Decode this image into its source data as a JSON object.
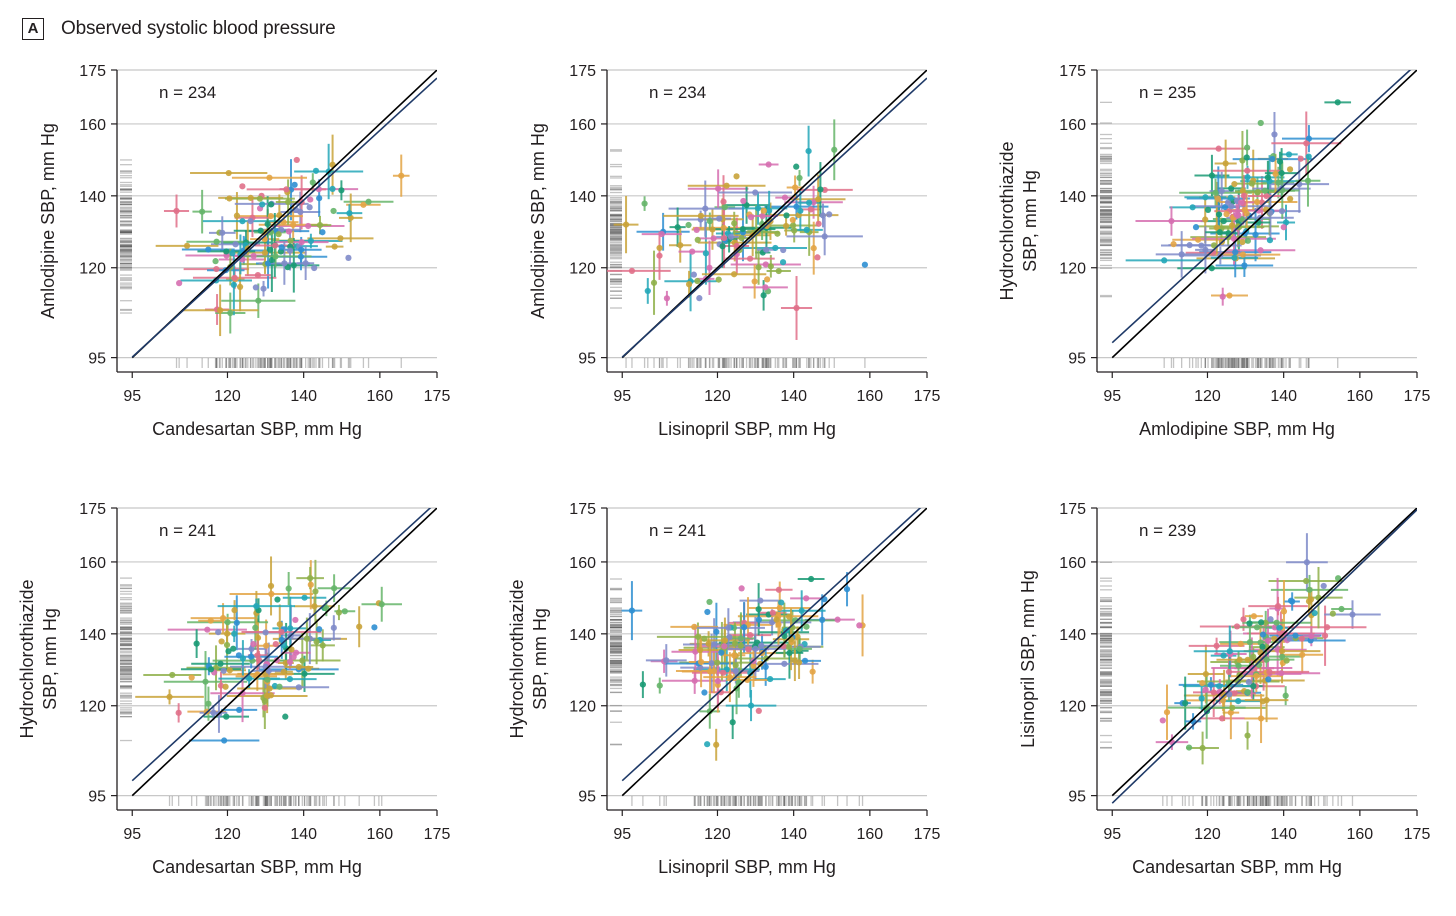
{
  "panel": {
    "letter": "A",
    "title": "Observed systolic blood pressure"
  },
  "colors": {
    "grid": "#c8c8c8",
    "axis": "#231f20",
    "identity_line": "#000000",
    "fit_line": "#1f3a68",
    "rug": "#555555",
    "points": [
      "#e0708a",
      "#e3a445",
      "#8fb04a",
      "#1a9a74",
      "#24a7b8",
      "#2f8fd1",
      "#7f8bc9",
      "#d66fb0",
      "#c9a33a",
      "#66b56a"
    ]
  },
  "chart_data": [
    {
      "type": "scatter",
      "n_label": "n = 234",
      "xlabel": "Candesartan SBP, mm Hg",
      "ylabel_lines": [
        "Amlodipine SBP, mm Hg"
      ],
      "xlim": [
        91,
        175
      ],
      "ylim": [
        91,
        175
      ],
      "ticks": [
        95,
        120,
        140,
        160,
        175
      ],
      "identity_line": true,
      "fit_line": {
        "intercept": 3,
        "slope": 0.97
      },
      "cloud": {
        "cx": 132,
        "cy": 130,
        "sx": 11,
        "sy": 9,
        "rho": 0.35,
        "seed": 11
      }
    },
    {
      "type": "scatter",
      "n_label": "n = 234",
      "xlabel": "Lisinopril SBP, mm Hg",
      "ylabel_lines": [
        "Amlodipine SBP, mm Hg"
      ],
      "xlim": [
        91,
        175
      ],
      "ylim": [
        91,
        175
      ],
      "ticks": [
        95,
        120,
        140,
        160,
        175
      ],
      "identity_line": true,
      "fit_line": {
        "intercept": 3,
        "slope": 0.97
      },
      "cloud": {
        "cx": 128,
        "cy": 129,
        "sx": 12,
        "sy": 9,
        "rho": 0.4,
        "seed": 23
      }
    },
    {
      "type": "scatter",
      "n_label": "n = 235",
      "xlabel": "Amlodipine SBP, mm Hg",
      "ylabel_lines": [
        "Hydrochlorothiazide",
        "SBP, mm Hg"
      ],
      "xlim": [
        91,
        175
      ],
      "ylim": [
        91,
        175
      ],
      "ticks": [
        95,
        120,
        140,
        160,
        175
      ],
      "identity_line": true,
      "fit_line": {
        "intercept": 7,
        "slope": 0.97
      },
      "cloud": {
        "cx": 130,
        "cy": 136,
        "sx": 8,
        "sy": 10,
        "rho": 0.55,
        "seed": 37
      }
    },
    {
      "type": "scatter",
      "n_label": "n = 241",
      "xlabel": "Candesartan SBP, mm Hg",
      "ylabel_lines": [
        "Hydrochlorothiazide",
        "SBP, mm Hg"
      ],
      "xlim": [
        91,
        175
      ],
      "ylim": [
        91,
        175
      ],
      "ticks": [
        95,
        120,
        140,
        160,
        175
      ],
      "identity_line": true,
      "fit_line": {
        "intercept": 7,
        "slope": 0.97
      },
      "cloud": {
        "cx": 131,
        "cy": 136,
        "sx": 11,
        "sy": 10,
        "rho": 0.5,
        "seed": 41
      }
    },
    {
      "type": "scatter",
      "n_label": "n = 241",
      "xlabel": "Lisinopril SBP, mm Hg",
      "ylabel_lines": [
        "Hydrochlorothiazide",
        "SBP, mm Hg"
      ],
      "xlim": [
        91,
        175
      ],
      "ylim": [
        91,
        175
      ],
      "ticks": [
        95,
        120,
        140,
        160,
        175
      ],
      "identity_line": true,
      "fit_line": {
        "intercept": 7,
        "slope": 0.97
      },
      "cloud": {
        "cx": 128,
        "cy": 136,
        "sx": 12,
        "sy": 10,
        "rho": 0.45,
        "seed": 53
      }
    },
    {
      "type": "scatter",
      "n_label": "n = 239",
      "xlabel": "Candesartan SBP, mm Hg",
      "ylabel_lines": [
        "Lisinopril SBP, mm Hg"
      ],
      "xlim": [
        91,
        175
      ],
      "ylim": [
        91,
        175
      ],
      "ticks": [
        95,
        120,
        140,
        160,
        175
      ],
      "identity_line": true,
      "fit_line": {
        "intercept": -4,
        "slope": 1.02
      },
      "cloud": {
        "cx": 131,
        "cy": 130,
        "sx": 10,
        "sy": 10,
        "rho": 0.75,
        "seed": 67
      }
    }
  ]
}
